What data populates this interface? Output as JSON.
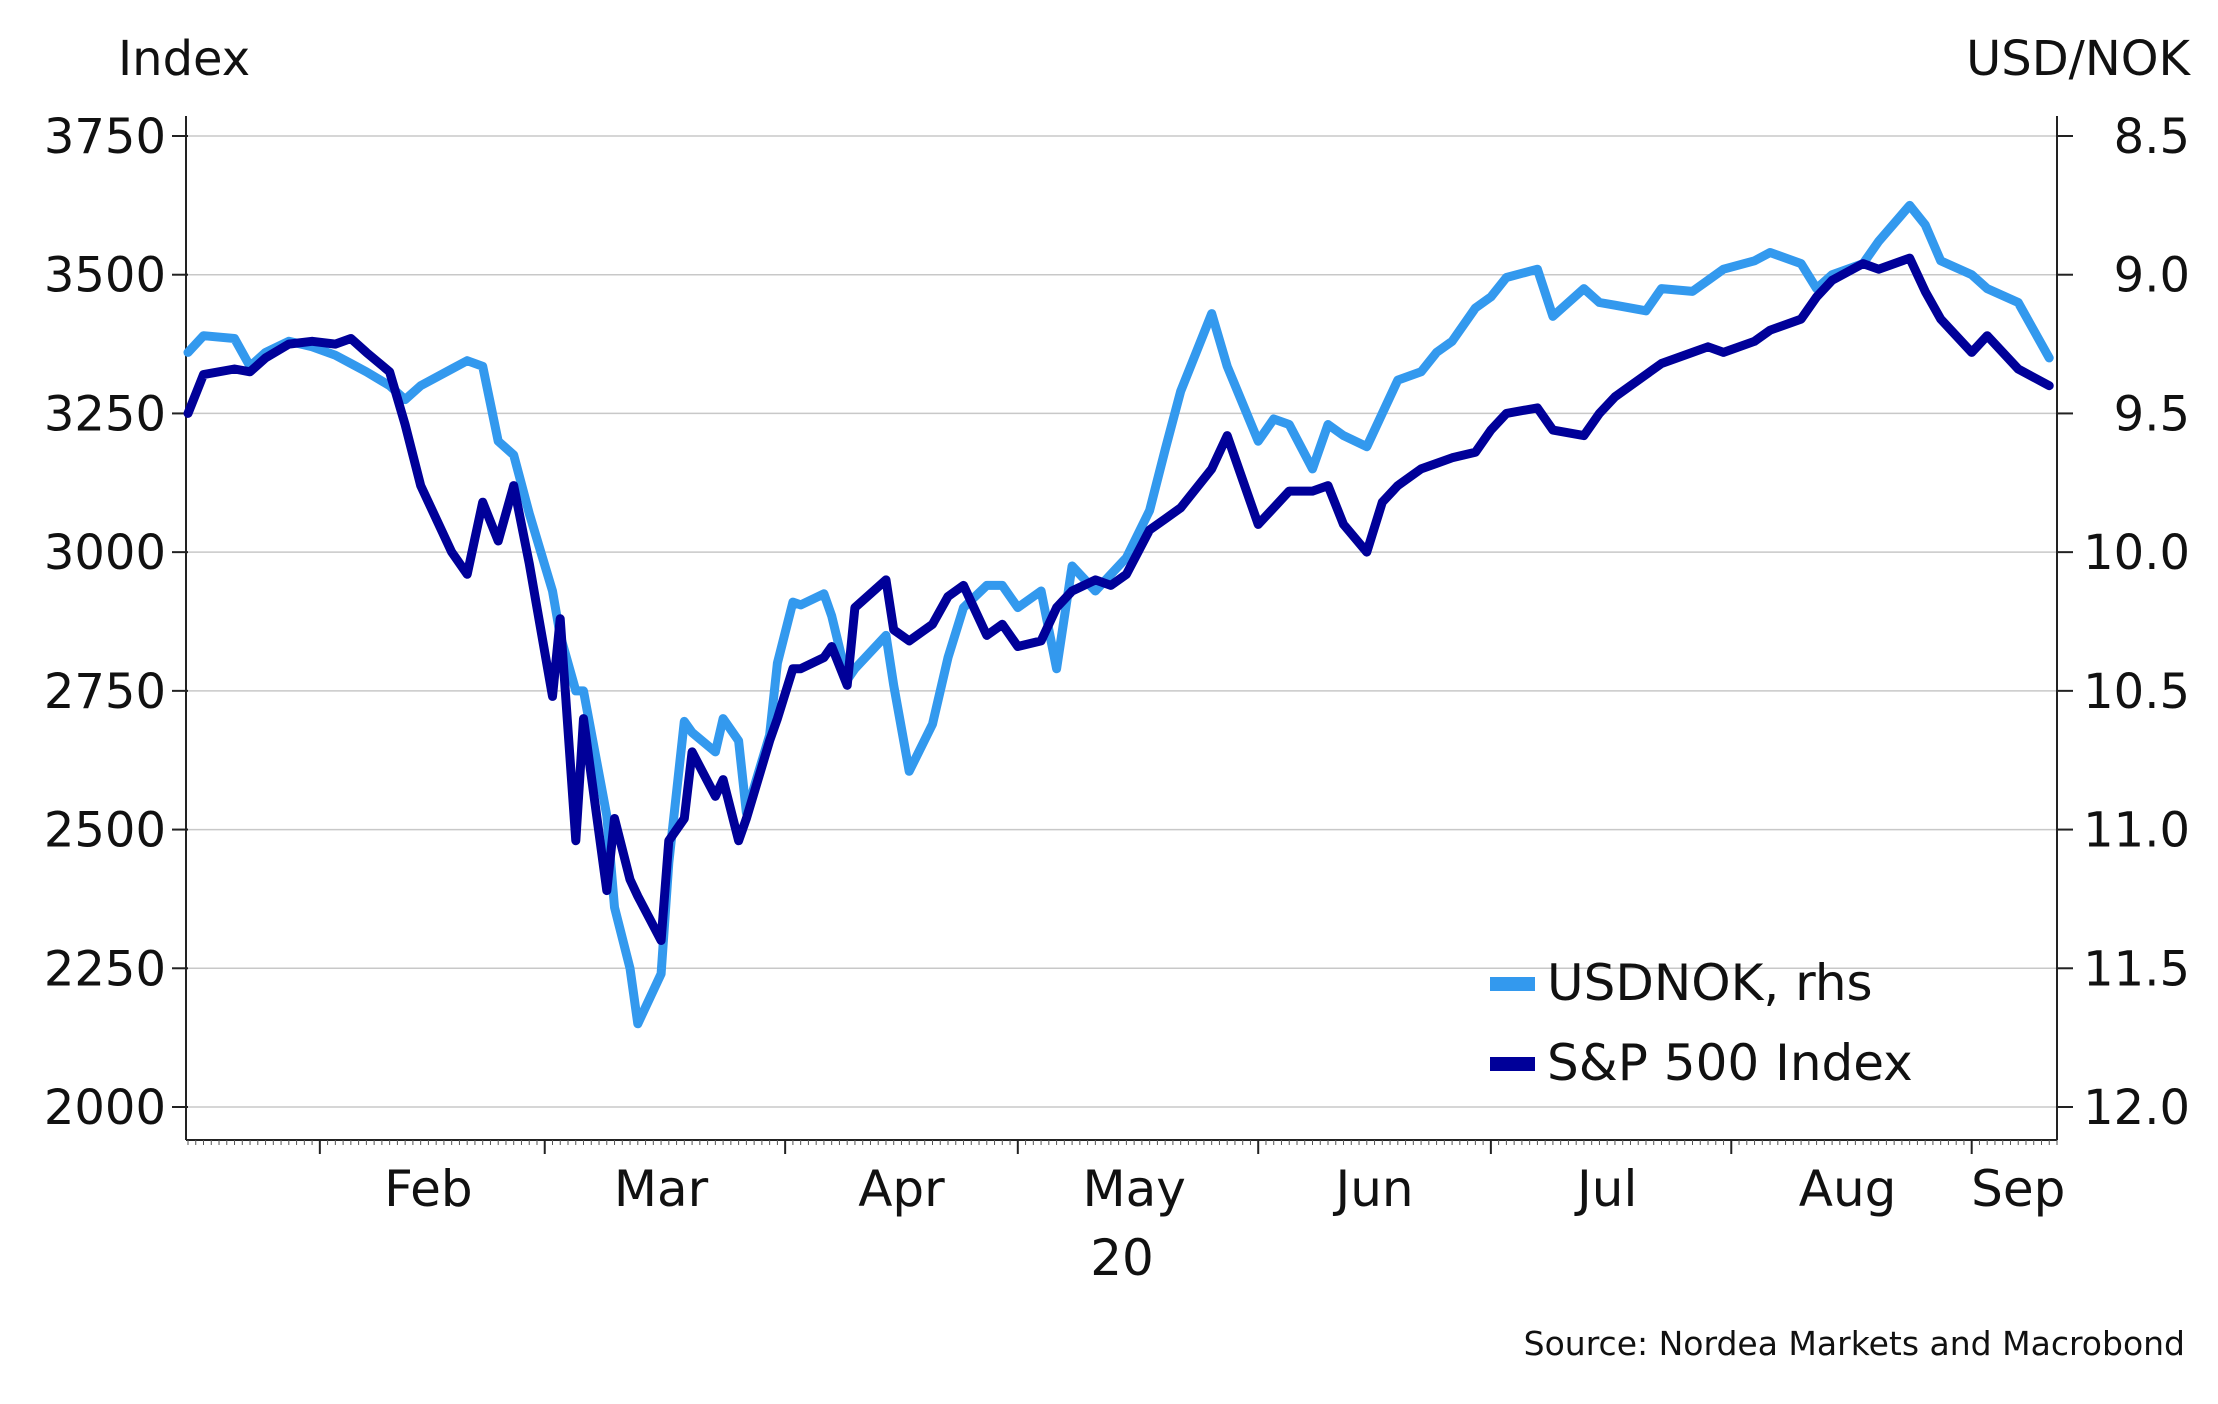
{
  "chart_data": {
    "type": "line",
    "left_axis_title": "Index",
    "right_axis_title": "USD/NOK",
    "year_label": "20",
    "source": "Source: Nordea Markets and Macrobond",
    "left_axis": {
      "min": 2000,
      "max": 3750,
      "ticks": [
        2000,
        2250,
        2500,
        2750,
        3000,
        3250,
        3500,
        3750
      ],
      "tick_labels": [
        "2000",
        "2250",
        "2500",
        "2750",
        "3000",
        "3250",
        "3500",
        "3750"
      ]
    },
    "right_axis": {
      "min": 8.5,
      "max": 12.0,
      "inverted": true,
      "ticks": [
        8.5,
        9.0,
        9.5,
        10.0,
        10.5,
        11.0,
        11.5,
        12.0
      ],
      "tick_labels": [
        "8.5",
        "9.0",
        "9.5",
        "10.0",
        "10.5",
        "11.0",
        "11.5",
        "12.0"
      ]
    },
    "x_axis": {
      "start": "2020-01-15",
      "end": "2020-09-12",
      "month_boundaries": [
        "2020-02-01",
        "2020-03-01",
        "2020-04-01",
        "2020-05-01",
        "2020-06-01",
        "2020-07-01",
        "2020-08-01",
        "2020-09-01"
      ],
      "month_labels": [
        {
          "label": "Feb",
          "date": "2020-02-15"
        },
        {
          "label": "Mar",
          "date": "2020-03-16"
        },
        {
          "label": "Apr",
          "date": "2020-04-16"
        },
        {
          "label": "May",
          "date": "2020-05-16"
        },
        {
          "label": "Jun",
          "date": "2020-06-16"
        },
        {
          "label": "Jul",
          "date": "2020-07-16"
        },
        {
          "label": "Aug",
          "date": "2020-08-16"
        },
        {
          "label": "Sep",
          "date": "2020-09-07"
        }
      ]
    },
    "grid": "horizontal",
    "legend_position": "bottom-right",
    "series": [
      {
        "name": "USDNOK, rhs",
        "axis": "right",
        "color": "#3399ee",
        "x": [
          "2020-01-15",
          "2020-01-17",
          "2020-01-21",
          "2020-01-23",
          "2020-01-25",
          "2020-01-28",
          "2020-01-31",
          "2020-02-03",
          "2020-02-05",
          "2020-02-07",
          "2020-02-10",
          "2020-02-12",
          "2020-02-14",
          "2020-02-18",
          "2020-02-20",
          "2020-02-22",
          "2020-02-24",
          "2020-02-26",
          "2020-02-28",
          "2020-03-02",
          "2020-03-03",
          "2020-03-05",
          "2020-03-06",
          "2020-03-09",
          "2020-03-10",
          "2020-03-12",
          "2020-03-13",
          "2020-03-16",
          "2020-03-17",
          "2020-03-19",
          "2020-03-20",
          "2020-03-23",
          "2020-03-24",
          "2020-03-26",
          "2020-03-27",
          "2020-03-30",
          "2020-03-31",
          "2020-04-02",
          "2020-04-03",
          "2020-04-06",
          "2020-04-07",
          "2020-04-09",
          "2020-04-10",
          "2020-04-14",
          "2020-04-15",
          "2020-04-17",
          "2020-04-20",
          "2020-04-22",
          "2020-04-24",
          "2020-04-27",
          "2020-04-29",
          "2020-05-01",
          "2020-05-04",
          "2020-05-06",
          "2020-05-08",
          "2020-05-11",
          "2020-05-13",
          "2020-05-15",
          "2020-05-18",
          "2020-05-20",
          "2020-05-22",
          "2020-05-26",
          "2020-05-28",
          "2020-06-01",
          "2020-06-03",
          "2020-06-05",
          "2020-06-08",
          "2020-06-10",
          "2020-06-12",
          "2020-06-15",
          "2020-06-17",
          "2020-06-19",
          "2020-06-22",
          "2020-06-24",
          "2020-06-26",
          "2020-06-29",
          "2020-07-01",
          "2020-07-03",
          "2020-07-07",
          "2020-07-09",
          "2020-07-13",
          "2020-07-15",
          "2020-07-17",
          "2020-07-21",
          "2020-07-23",
          "2020-07-27",
          "2020-07-29",
          "2020-07-31",
          "2020-08-04",
          "2020-08-06",
          "2020-08-10",
          "2020-08-12",
          "2020-08-14",
          "2020-08-18",
          "2020-08-20",
          "2020-08-24",
          "2020-08-26",
          "2020-08-28",
          "2020-09-01",
          "2020-09-03",
          "2020-09-07",
          "2020-09-11"
        ],
        "values": [
          9.28,
          9.22,
          9.23,
          9.33,
          9.28,
          9.24,
          9.26,
          9.29,
          9.32,
          9.35,
          9.4,
          9.45,
          9.4,
          9.34,
          9.31,
          9.33,
          9.6,
          9.65,
          9.86,
          10.14,
          10.3,
          10.5,
          10.5,
          10.95,
          11.28,
          11.5,
          11.7,
          11.52,
          11.12,
          10.61,
          10.65,
          10.72,
          10.6,
          10.68,
          10.94,
          10.66,
          10.4,
          10.18,
          10.19,
          10.15,
          10.23,
          10.46,
          10.42,
          10.3,
          10.48,
          10.79,
          10.62,
          10.38,
          10.2,
          10.12,
          10.12,
          10.2,
          10.14,
          10.42,
          10.05,
          10.14,
          10.08,
          10.02,
          9.85,
          9.63,
          9.42,
          9.14,
          9.33,
          9.6,
          9.52,
          9.54,
          9.7,
          9.54,
          9.58,
          9.62,
          9.5,
          9.38,
          9.35,
          9.28,
          9.24,
          9.12,
          9.08,
          9.01,
          8.98,
          9.15,
          9.05,
          9.1,
          9.11,
          9.13,
          9.05,
          9.06,
          9.02,
          8.98,
          8.95,
          8.92,
          8.96,
          9.05,
          9.0,
          8.96,
          8.88,
          8.75,
          8.82,
          8.95,
          9.0,
          9.05,
          9.1,
          9.3
        ]
      },
      {
        "name": "S&P 500 Index",
        "axis": "left",
        "color": "#000099",
        "x": [
          "2020-01-15",
          "2020-01-17",
          "2020-01-21",
          "2020-01-23",
          "2020-01-25",
          "2020-01-28",
          "2020-01-31",
          "2020-02-03",
          "2020-02-05",
          "2020-02-07",
          "2020-02-10",
          "2020-02-12",
          "2020-02-14",
          "2020-02-18",
          "2020-02-20",
          "2020-02-22",
          "2020-02-24",
          "2020-02-26",
          "2020-02-28",
          "2020-03-02",
          "2020-03-03",
          "2020-03-05",
          "2020-03-06",
          "2020-03-09",
          "2020-03-10",
          "2020-03-12",
          "2020-03-13",
          "2020-03-16",
          "2020-03-17",
          "2020-03-19",
          "2020-03-20",
          "2020-03-23",
          "2020-03-24",
          "2020-03-26",
          "2020-03-27",
          "2020-03-30",
          "2020-03-31",
          "2020-04-02",
          "2020-04-03",
          "2020-04-06",
          "2020-04-07",
          "2020-04-09",
          "2020-04-10",
          "2020-04-14",
          "2020-04-15",
          "2020-04-17",
          "2020-04-20",
          "2020-04-22",
          "2020-04-24",
          "2020-04-27",
          "2020-04-29",
          "2020-05-01",
          "2020-05-04",
          "2020-05-06",
          "2020-05-08",
          "2020-05-11",
          "2020-05-13",
          "2020-05-15",
          "2020-05-18",
          "2020-05-20",
          "2020-05-22",
          "2020-05-26",
          "2020-05-28",
          "2020-06-01",
          "2020-06-03",
          "2020-06-05",
          "2020-06-08",
          "2020-06-10",
          "2020-06-12",
          "2020-06-15",
          "2020-06-17",
          "2020-06-19",
          "2020-06-22",
          "2020-06-24",
          "2020-06-26",
          "2020-06-29",
          "2020-07-01",
          "2020-07-03",
          "2020-07-07",
          "2020-07-09",
          "2020-07-13",
          "2020-07-15",
          "2020-07-17",
          "2020-07-21",
          "2020-07-23",
          "2020-07-27",
          "2020-07-29",
          "2020-07-31",
          "2020-08-04",
          "2020-08-06",
          "2020-08-10",
          "2020-08-12",
          "2020-08-14",
          "2020-08-18",
          "2020-08-20",
          "2020-08-24",
          "2020-08-26",
          "2020-08-28",
          "2020-09-01",
          "2020-09-03",
          "2020-09-07",
          "2020-09-11"
        ],
        "values": [
          3250,
          3320,
          3330,
          3325,
          3350,
          3375,
          3380,
          3375,
          3385,
          3360,
          3325,
          3230,
          3120,
          3000,
          2960,
          3090,
          3020,
          3120,
          2980,
          2740,
          2880,
          2480,
          2700,
          2390,
          2520,
          2410,
          2380,
          2300,
          2480,
          2520,
          2640,
          2560,
          2590,
          2480,
          2520,
          2660,
          2700,
          2790,
          2790,
          2810,
          2830,
          2760,
          2900,
          2950,
          2860,
          2840,
          2870,
          2920,
          2940,
          2850,
          2870,
          2830,
          2840,
          2900,
          2930,
          2950,
          2940,
          2960,
          3040,
          3060,
          3080,
          3150,
          3210,
          3050,
          3080,
          3110,
          3110,
          3120,
          3050,
          3000,
          3090,
          3120,
          3150,
          3160,
          3170,
          3180,
          3220,
          3250,
          3260,
          3220,
          3210,
          3250,
          3280,
          3320,
          3340,
          3360,
          3370,
          3360,
          3380,
          3400,
          3420,
          3460,
          3490,
          3520,
          3510,
          3530,
          3470,
          3420,
          3360,
          3390,
          3330,
          3300
        ]
      }
    ]
  }
}
